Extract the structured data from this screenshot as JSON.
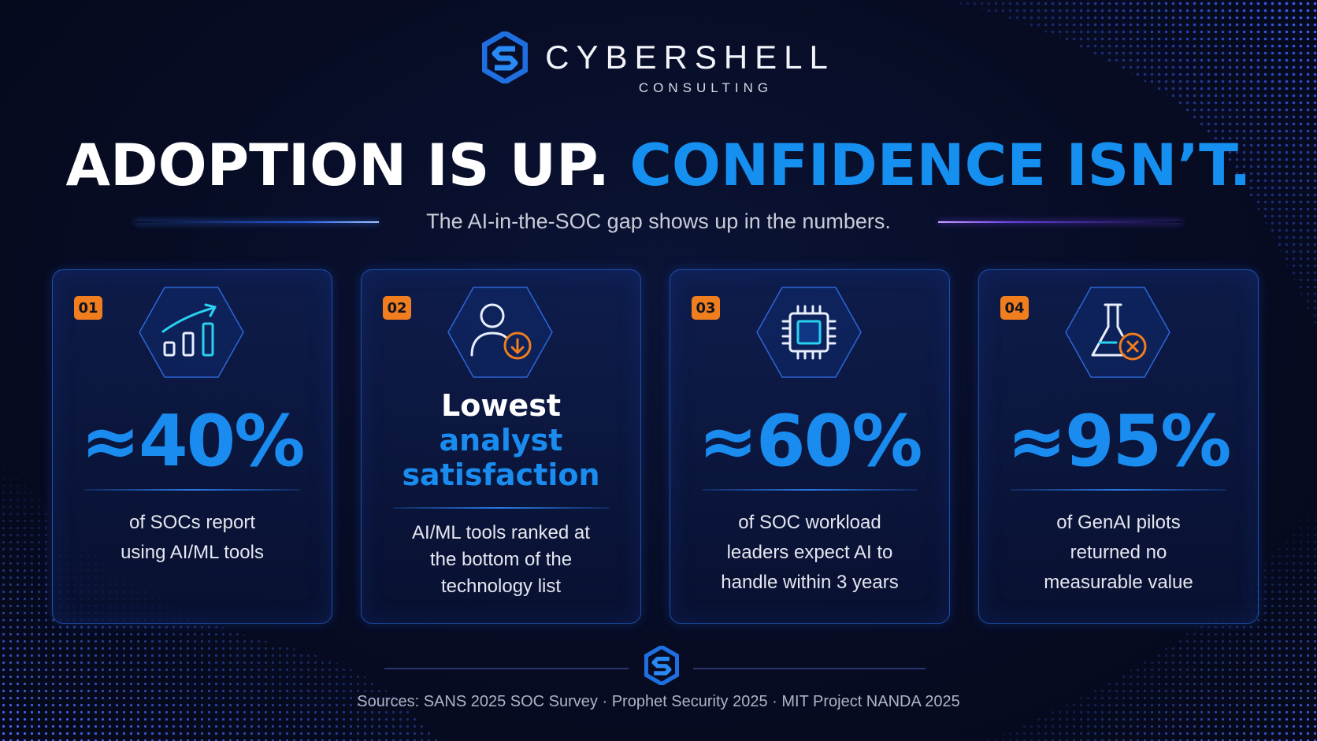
{
  "brand": {
    "name": "CYBERSHELL",
    "sub": "CONSULTING"
  },
  "headline": {
    "white": "ADOPTION IS UP.",
    "blue": "CONFIDENCE ISN’T."
  },
  "subtitle": "The AI-in-the-SOC gap shows up in the numbers.",
  "cards": [
    {
      "badge": "01",
      "icon": "growth-chart-icon",
      "stat": "≈40%",
      "desc": [
        "of SOCs report",
        "using AI/ML tools"
      ]
    },
    {
      "badge": "02",
      "icon": "user-down-icon",
      "stat_lines": [
        "Lowest",
        "analyst",
        "satisfaction"
      ],
      "desc": [
        "AI/ML tools ranked at",
        "the bottom of the",
        "technology list"
      ]
    },
    {
      "badge": "03",
      "icon": "cpu-chip-icon",
      "stat": "≈60%",
      "desc": [
        "of SOC workload",
        "leaders expect AI to",
        "handle within 3 years"
      ]
    },
    {
      "badge": "04",
      "icon": "flask-x-icon",
      "stat": "≈95%",
      "desc": [
        "of GenAI pilots",
        "returned no",
        "measurable value"
      ]
    }
  ],
  "sources": "Sources: SANS 2025 SOC Survey · Prophet Security 2025 · MIT Project NANDA 2025",
  "colors": {
    "accent_blue": "#1a8cf0",
    "badge_orange": "#f07d1e",
    "background": "#070c24"
  }
}
